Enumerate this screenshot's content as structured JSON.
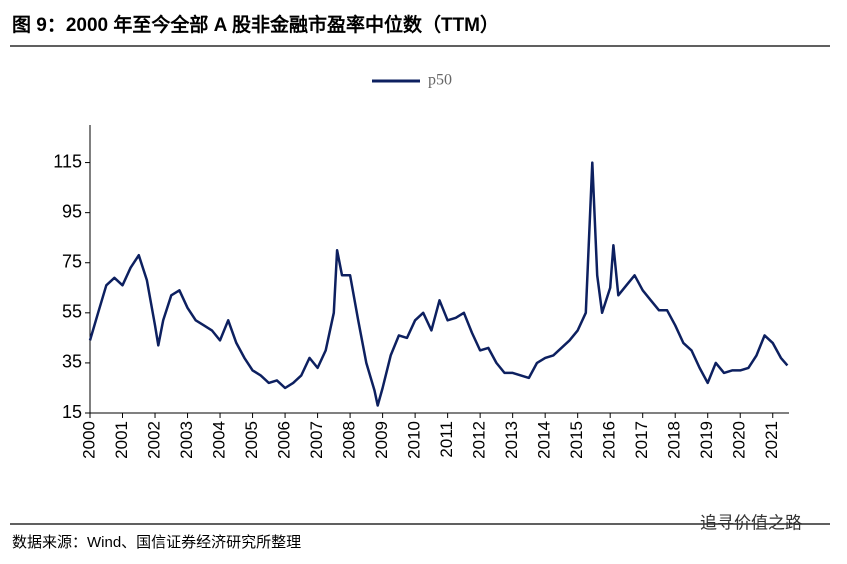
{
  "chart_data": {
    "type": "line",
    "title": "图 9：2000 年至今全部 A 股非金融市盈率中位数（TTM）",
    "source": "数据来源：Wind、国信证券经济研究所整理",
    "watermark": "追寻价值之路",
    "legend": "top",
    "x": [
      2000.0,
      2000.25,
      2000.5,
      2000.75,
      2001.0,
      2001.25,
      2001.5,
      2001.75,
      2002.0,
      2002.1,
      2002.25,
      2002.5,
      2002.75,
      2003.0,
      2003.25,
      2003.5,
      2003.75,
      2004.0,
      2004.25,
      2004.5,
      2004.75,
      2005.0,
      2005.25,
      2005.5,
      2005.75,
      2006.0,
      2006.25,
      2006.5,
      2006.75,
      2007.0,
      2007.25,
      2007.5,
      2007.6,
      2007.75,
      2008.0,
      2008.25,
      2008.5,
      2008.75,
      2008.85,
      2009.0,
      2009.25,
      2009.5,
      2009.75,
      2010.0,
      2010.25,
      2010.5,
      2010.75,
      2011.0,
      2011.25,
      2011.5,
      2011.75,
      2012.0,
      2012.25,
      2012.5,
      2012.75,
      2013.0,
      2013.25,
      2013.5,
      2013.75,
      2014.0,
      2014.25,
      2014.5,
      2014.75,
      2015.0,
      2015.25,
      2015.45,
      2015.6,
      2015.75,
      2016.0,
      2016.1,
      2016.25,
      2016.5,
      2016.75,
      2017.0,
      2017.25,
      2017.5,
      2017.75,
      2018.0,
      2018.25,
      2018.5,
      2018.75,
      2019.0,
      2019.25,
      2019.5,
      2019.75,
      2020.0,
      2020.25,
      2020.5,
      2020.75,
      2021.0,
      2021.25,
      2021.45
    ],
    "series": [
      {
        "name": "p50",
        "color": "#0d2060",
        "values": [
          44,
          55,
          66,
          69,
          66,
          73,
          78,
          68,
          50,
          42,
          52,
          62,
          64,
          57,
          52,
          50,
          48,
          44,
          52,
          43,
          37,
          32,
          30,
          27,
          28,
          25,
          27,
          30,
          37,
          33,
          40,
          55,
          80,
          70,
          70,
          52,
          35,
          24,
          18,
          25,
          38,
          46,
          45,
          52,
          55,
          48,
          60,
          52,
          53,
          55,
          47,
          40,
          41,
          35,
          31,
          31,
          30,
          29,
          35,
          37,
          38,
          41,
          44,
          48,
          55,
          115,
          70,
          55,
          65,
          82,
          62,
          66,
          70,
          64,
          60,
          56,
          56,
          50,
          43,
          40,
          33,
          27,
          35,
          31,
          32,
          32,
          33,
          38,
          46,
          43,
          37,
          34
        ]
      }
    ],
    "xlim": [
      2000,
      2021.5
    ],
    "xticks": [
      2000,
      2001,
      2002,
      2003,
      2004,
      2005,
      2006,
      2007,
      2008,
      2009,
      2010,
      2011,
      2012,
      2013,
      2014,
      2015,
      2016,
      2017,
      2018,
      2019,
      2020,
      2021
    ],
    "ylim": [
      15,
      130
    ],
    "yticks": [
      15,
      35,
      55,
      75,
      95,
      115
    ]
  }
}
